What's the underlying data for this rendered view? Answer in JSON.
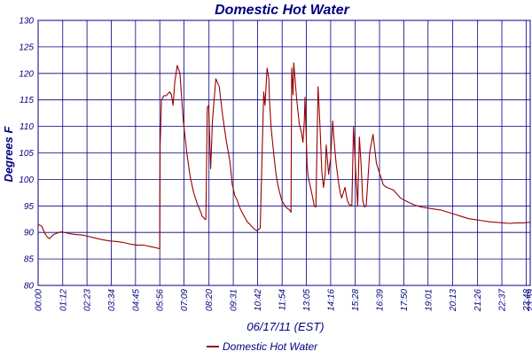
{
  "chart_data": {
    "type": "line",
    "title": "Domestic Hot Water",
    "xlabel": "06/17/11 (EST)",
    "ylabel": "Degrees F",
    "ylim": [
      80,
      130
    ],
    "yticks": [
      80,
      85,
      90,
      95,
      100,
      105,
      110,
      115,
      120,
      125,
      130
    ],
    "xlim": [
      0,
      1440
    ],
    "xticks": [
      {
        "t": 0,
        "label": "00:00"
      },
      {
        "t": 72,
        "label": "01:12"
      },
      {
        "t": 143,
        "label": "02:23"
      },
      {
        "t": 214,
        "label": "03:34"
      },
      {
        "t": 285,
        "label": "04:45"
      },
      {
        "t": 356,
        "label": "05:56"
      },
      {
        "t": 427,
        "label": "07:09"
      },
      {
        "t": 500,
        "label": "08:20"
      },
      {
        "t": 571,
        "label": "09:31"
      },
      {
        "t": 642,
        "label": "10:42"
      },
      {
        "t": 714,
        "label": "11:54"
      },
      {
        "t": 785,
        "label": "13:05"
      },
      {
        "t": 856,
        "label": "14:16"
      },
      {
        "t": 928,
        "label": "15:28"
      },
      {
        "t": 999,
        "label": "16:39"
      },
      {
        "t": 1070,
        "label": "17:50"
      },
      {
        "t": 1141,
        "label": "19:01"
      },
      {
        "t": 1213,
        "label": "20:13"
      },
      {
        "t": 1286,
        "label": "21:26"
      },
      {
        "t": 1357,
        "label": "22:37"
      },
      {
        "t": 1428,
        "label": "23:48"
      },
      {
        "t": 1440,
        "label": "23:59"
      }
    ],
    "grid": true,
    "legend": "bottom-center",
    "series": [
      {
        "name": "Domestic Hot Water",
        "color": "#990000",
        "x": [
          0,
          10,
          20,
          26,
          33,
          45,
          60,
          70,
          90,
          110,
          130,
          150,
          170,
          190,
          210,
          230,
          250,
          270,
          290,
          310,
          330,
          345,
          356,
          357,
          361,
          368,
          375,
          380,
          385,
          390,
          395,
          400,
          407,
          415,
          425,
          435,
          445,
          455,
          465,
          473,
          478,
          480,
          485,
          487,
          491,
          495,
          499,
          505,
          510,
          520,
          530,
          540,
          550,
          561,
          565,
          568,
          571,
          575,
          583,
          588,
          595,
          600,
          605,
          612,
          620,
          630,
          640,
          650,
          660,
          664,
          670,
          675,
          677,
          682,
          686,
          690,
          696,
          700,
          705,
          713,
          720,
          725,
          730,
          735,
          740,
          742,
          746,
          748,
          756,
          764,
          770,
          775,
          779,
          781,
          787,
          790,
          797,
          805,
          808,
          813,
          819,
          822,
          826,
          830,
          835,
          840,
          843,
          850,
          856,
          862,
          867,
          872,
          877,
          880,
          884,
          888,
          893,
          898,
          902,
          905,
          910,
          918,
          923,
          928,
          935,
          940,
          945,
          950,
          955,
          960,
          970,
          980,
          990,
          1000,
          1010,
          1020,
          1040,
          1060,
          1080,
          1100,
          1120,
          1140,
          1160,
          1180,
          1200,
          1220,
          1240,
          1260,
          1280,
          1300,
          1320,
          1340,
          1360,
          1380,
          1400,
          1420,
          1440
        ],
        "y": [
          91.5,
          91.2,
          89.8,
          89.2,
          88.8,
          89.6,
          90.0,
          90.1,
          89.8,
          89.6,
          89.5,
          89.2,
          88.9,
          88.6,
          88.4,
          88.3,
          88.1,
          87.8,
          87.6,
          87.6,
          87.3,
          87.1,
          86.9,
          106.5,
          115.0,
          115.8,
          115.8,
          116.2,
          116.5,
          116.0,
          114.0,
          118.5,
          121.5,
          120.0,
          111.0,
          105.0,
          100.5,
          97.5,
          95.5,
          94.3,
          93.5,
          93.0,
          92.8,
          92.5,
          92.5,
          113.5,
          114.0,
          102.0,
          111.0,
          119.0,
          117.5,
          112.0,
          107.5,
          103.5,
          101.0,
          99.0,
          98.3,
          97.0,
          96.0,
          95.0,
          94.0,
          93.4,
          92.8,
          92.0,
          91.5,
          90.8,
          90.3,
          90.8,
          116.5,
          114.0,
          121.0,
          119.0,
          115.0,
          109.5,
          107.0,
          104.5,
          101.0,
          99.5,
          98.0,
          96.0,
          95.3,
          94.8,
          94.5,
          94.3,
          93.8,
          121.0,
          116.0,
          122.0,
          115.5,
          110.5,
          109.0,
          107.0,
          111.0,
          115.5,
          103.0,
          100.5,
          98.5,
          96.0,
          95.0,
          94.8,
          117.5,
          114.0,
          108.0,
          101.5,
          98.5,
          101.0,
          106.5,
          101.0,
          104.0,
          111.0,
          106.5,
          103.0,
          100.5,
          99.0,
          97.5,
          96.5,
          97.5,
          98.5,
          97.0,
          96.0,
          95.3,
          95.0,
          110.0,
          103.0,
          95.0,
          108.0,
          103.0,
          96.0,
          94.8,
          95.0,
          105.0,
          108.5,
          103.0,
          101.0,
          99.0,
          98.5,
          98.0,
          96.5,
          95.8,
          95.2,
          94.8,
          94.6,
          94.4,
          94.2,
          93.8,
          93.4,
          93.0,
          92.6,
          92.4,
          92.2,
          92.0,
          91.9,
          91.8,
          91.7,
          91.8,
          91.8,
          91.9
        ]
      }
    ]
  }
}
